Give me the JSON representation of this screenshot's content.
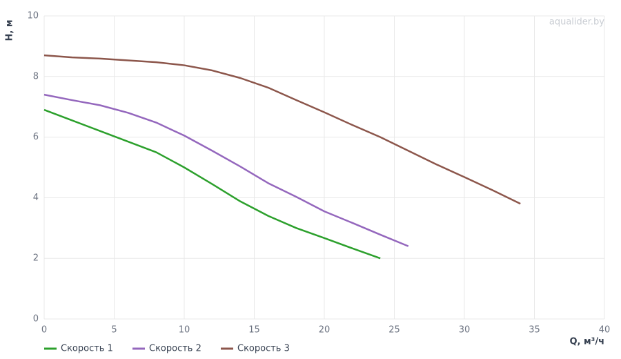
{
  "chart_data": {
    "type": "line",
    "watermark": "aqualider.by",
    "x_label": "Q, м³/ч",
    "y_label": "H, м",
    "xlim": [
      0,
      40
    ],
    "xticks": [
      0,
      5,
      10,
      15,
      20,
      25,
      30,
      35,
      40
    ],
    "ylim": [
      0,
      10
    ],
    "yticks": [
      0,
      2,
      4,
      6,
      8,
      10
    ],
    "grid": true,
    "legend": "bottom-left",
    "series": [
      {
        "name": "Скорость 1",
        "color": "#2ca02c",
        "x": [
          0,
          2,
          4,
          6,
          8,
          10,
          12,
          14,
          16,
          18,
          20,
          22,
          24
        ],
        "values": [
          6.9,
          6.55,
          6.2,
          5.85,
          5.5,
          5.0,
          4.45,
          3.88,
          3.4,
          3.0,
          2.67,
          2.33,
          2.0
        ]
      },
      {
        "name": "Скорость 2",
        "color": "#9467bd",
        "x": [
          0,
          2,
          4,
          6,
          8,
          10,
          12,
          14,
          16,
          18,
          20,
          22,
          24,
          26
        ],
        "values": [
          7.4,
          7.22,
          7.05,
          6.8,
          6.48,
          6.05,
          5.55,
          5.03,
          4.48,
          4.03,
          3.55,
          3.17,
          2.78,
          2.4
        ]
      },
      {
        "name": "Скорость 3",
        "color": "#8c564b",
        "x": [
          0,
          2,
          4,
          6,
          8,
          10,
          12,
          14,
          16,
          18,
          20,
          22,
          24,
          26,
          28,
          30,
          32,
          34
        ],
        "values": [
          8.7,
          8.63,
          8.59,
          8.53,
          8.47,
          8.37,
          8.2,
          7.95,
          7.63,
          7.22,
          6.82,
          6.4,
          6.0,
          5.55,
          5.1,
          4.68,
          4.25,
          3.8
        ]
      }
    ]
  }
}
